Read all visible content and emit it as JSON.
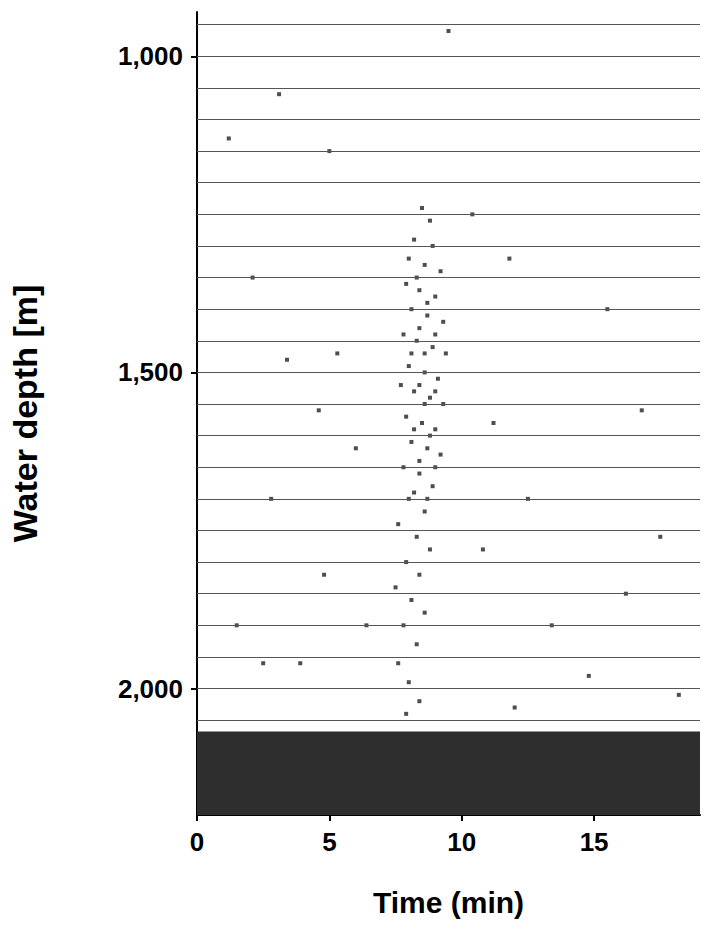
{
  "chart_data": {
    "type": "scatter",
    "x_label": "Time (min)",
    "y_label": "Water depth [m]",
    "x": [
      8.5,
      8.8,
      8.2,
      8.9,
      8.0,
      8.6,
      9.2,
      7.9,
      8.4,
      9.0,
      8.1,
      8.7,
      9.3,
      7.8,
      8.3,
      8.9,
      9.4,
      8.0,
      8.6,
      9.1,
      7.7,
      8.2,
      8.8,
      9.3,
      7.9,
      8.5,
      9.0,
      8.1,
      8.7,
      9.2,
      7.8,
      8.4,
      8.9,
      8.0,
      8.6,
      7.6,
      8.3,
      8.8,
      7.9,
      8.4,
      7.5,
      8.1,
      8.6,
      7.8,
      8.3,
      7.6,
      8.0,
      8.4,
      7.9,
      8.3,
      8.7,
      8.4,
      9.0,
      8.6,
      8.1,
      8.4,
      9.0,
      8.6,
      8.2,
      8.8,
      8.4,
      9.0,
      8.2,
      8.7,
      1.2,
      2.1,
      3.4,
      4.6,
      5.3,
      2.8,
      1.5,
      3.9,
      4.8,
      6.0,
      11.2,
      12.5,
      13.4,
      14.8,
      16.2,
      17.5,
      11.8,
      10.4,
      5.0,
      15.5,
      18.2,
      2.5,
      12.0,
      6.4,
      9.5,
      3.1,
      10.8,
      16.8
    ],
    "values": [
      1240,
      1260,
      1290,
      1300,
      1320,
      1330,
      1340,
      1360,
      1370,
      1380,
      1400,
      1410,
      1420,
      1440,
      1450,
      1460,
      1470,
      1490,
      1500,
      1510,
      1520,
      1530,
      1540,
      1550,
      1570,
      1580,
      1590,
      1610,
      1620,
      1630,
      1650,
      1660,
      1680,
      1700,
      1720,
      1740,
      1760,
      1780,
      1800,
      1820,
      1840,
      1860,
      1880,
      1900,
      1930,
      1960,
      1990,
      2020,
      2040,
      1350,
      1390,
      1430,
      1440,
      1470,
      1470,
      1520,
      1530,
      1550,
      1590,
      1600,
      1640,
      1650,
      1690,
      1700,
      1130,
      1350,
      1480,
      1560,
      1470,
      1700,
      1900,
      1960,
      1820,
      1620,
      1580,
      1700,
      1900,
      1980,
      1850,
      1760,
      1320,
      1250,
      1150,
      1400,
      2010,
      1960,
      2030,
      1900,
      960,
      1060,
      1780,
      1560
    ],
    "color": "#222222",
    "marker": "square",
    "xlim": [
      0,
      19
    ],
    "xticks": [
      0,
      5,
      10,
      15
    ],
    "ylim": [
      2200,
      930
    ],
    "yticks": [
      1000,
      1500,
      2000
    ],
    "grid": true,
    "grid_lines": [
      950,
      1000,
      1050,
      1100,
      1150,
      1200,
      1250,
      1300,
      1350,
      1400,
      1450,
      1500,
      1550,
      1600,
      1650,
      1700,
      1750,
      1800,
      1850,
      1900,
      1950,
      2000,
      2050
    ],
    "seafloor_depth": 2068
  }
}
